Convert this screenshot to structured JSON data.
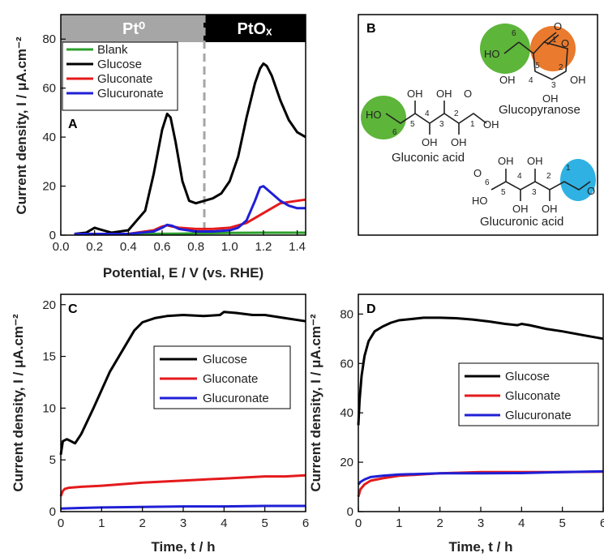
{
  "chart_data": [
    {
      "panel": "A",
      "type": "line",
      "xlabel": "Potential, E / V (vs. RHE)",
      "ylabel": "Current density, I / μA.cm⁻²",
      "xlim": [
        0.0,
        1.45
      ],
      "ylim": [
        0,
        90
      ],
      "xticks": [
        "0.0",
        "0.2",
        "0.4",
        "0.6",
        "0.8",
        "1.0",
        "1.2",
        "1.4"
      ],
      "yticks": [
        "0",
        "20",
        "40",
        "60",
        "80"
      ],
      "region_labels": [
        "Pt⁰",
        "PtOₓ"
      ],
      "region_boundary_x": 0.85,
      "legend_position": "top-left",
      "colors": {
        "Blank": "#2ca02c",
        "Glucose": "#000000",
        "Gluconate": "#e41a1c",
        "Glucuronate": "#1f1fd6"
      },
      "series": [
        {
          "name": "Blank",
          "x": [
            0.08,
            0.3,
            0.5,
            0.7,
            0.85,
            1.0,
            1.2,
            1.45
          ],
          "y": [
            0.5,
            0.5,
            0.5,
            0.6,
            0.8,
            0.9,
            1.0,
            1.0
          ]
        },
        {
          "name": "Glucose",
          "x": [
            0.08,
            0.15,
            0.2,
            0.25,
            0.3,
            0.4,
            0.5,
            0.55,
            0.6,
            0.63,
            0.65,
            0.68,
            0.72,
            0.76,
            0.8,
            0.85,
            0.9,
            0.95,
            1.0,
            1.05,
            1.1,
            1.15,
            1.18,
            1.2,
            1.22,
            1.25,
            1.3,
            1.35,
            1.4,
            1.45
          ],
          "y": [
            0.5,
            1,
            3,
            2,
            1,
            2,
            10,
            25,
            43,
            49.5,
            48,
            38,
            22,
            14,
            13,
            14,
            15,
            17,
            22,
            32,
            48,
            62,
            68,
            70,
            69,
            65,
            55,
            47,
            42,
            40
          ]
        },
        {
          "name": "Gluconate",
          "x": [
            0.08,
            0.4,
            0.55,
            0.6,
            0.63,
            0.66,
            0.7,
            0.8,
            0.9,
            1.0,
            1.1,
            1.2,
            1.3,
            1.4,
            1.45
          ],
          "y": [
            0.5,
            0.5,
            2,
            3.5,
            4,
            3.5,
            3,
            2.5,
            2.5,
            3,
            5,
            9,
            13,
            14,
            14.5
          ]
        },
        {
          "name": "Glucuronate",
          "x": [
            0.08,
            0.4,
            0.55,
            0.6,
            0.63,
            0.66,
            0.7,
            0.8,
            0.9,
            1.0,
            1.05,
            1.1,
            1.15,
            1.18,
            1.2,
            1.25,
            1.3,
            1.35,
            1.4,
            1.45
          ],
          "y": [
            0.5,
            0.5,
            1.5,
            3,
            4.2,
            3.8,
            2.5,
            1.5,
            1.5,
            2,
            3,
            6,
            14,
            19.5,
            20,
            17,
            14,
            12,
            11,
            11
          ]
        }
      ]
    },
    {
      "panel": "C",
      "type": "line",
      "xlabel": "Time, t / h",
      "ylabel": "Current density, I / μA.cm⁻²",
      "xlim": [
        0,
        6
      ],
      "ylim": [
        0,
        21
      ],
      "xticks": [
        "0",
        "1",
        "2",
        "3",
        "4",
        "5",
        "6"
      ],
      "yticks": [
        "0",
        "5",
        "10",
        "15",
        "20"
      ],
      "legend_position": "center-right",
      "series": [
        {
          "name": "Glucose",
          "x": [
            0,
            0.05,
            0.15,
            0.25,
            0.35,
            0.5,
            0.8,
            1.2,
            1.5,
            1.8,
            2.0,
            2.3,
            2.6,
            3.0,
            3.5,
            3.9,
            4.0,
            4.3,
            4.7,
            5.0,
            5.5,
            6.0
          ],
          "y": [
            5.5,
            6.8,
            7.0,
            6.8,
            6.6,
            7.5,
            10,
            13.5,
            15.5,
            17.5,
            18.3,
            18.7,
            18.9,
            19.0,
            18.9,
            19.0,
            19.3,
            19.2,
            19.0,
            19.0,
            18.7,
            18.4
          ]
        },
        {
          "name": "Gluconate",
          "x": [
            0,
            0.05,
            0.1,
            0.2,
            0.5,
            1,
            2,
            3,
            4,
            5,
            5.5,
            6
          ],
          "y": [
            1.5,
            2.0,
            2.2,
            2.3,
            2.4,
            2.5,
            2.8,
            3.0,
            3.2,
            3.4,
            3.4,
            3.5
          ]
        },
        {
          "name": "Glucuronate",
          "x": [
            0,
            0.5,
            1,
            2,
            3,
            4,
            5,
            6
          ],
          "y": [
            0.3,
            0.35,
            0.4,
            0.45,
            0.5,
            0.5,
            0.55,
            0.55
          ]
        }
      ]
    },
    {
      "panel": "D",
      "type": "line",
      "xlabel": "Time, t / h",
      "ylabel": "Current density, I / μA.cm⁻²",
      "xlim": [
        0,
        6
      ],
      "ylim": [
        0,
        88
      ],
      "xticks": [
        "0",
        "1",
        "2",
        "3",
        "4",
        "5",
        "6"
      ],
      "yticks": [
        "0",
        "20",
        "40",
        "60",
        "80"
      ],
      "legend_position": "center-right",
      "series": [
        {
          "name": "Glucose",
          "x": [
            0,
            0.03,
            0.08,
            0.15,
            0.25,
            0.4,
            0.6,
            0.8,
            1.0,
            1.3,
            1.6,
            2.0,
            2.4,
            2.8,
            3.2,
            3.6,
            3.9,
            4.0,
            4.2,
            4.6,
            5.0,
            5.5,
            6.0
          ],
          "y": [
            35,
            45,
            55,
            63,
            69,
            73,
            75,
            76.5,
            77.5,
            78,
            78.5,
            78.5,
            78.3,
            77.8,
            77,
            76,
            75.5,
            76,
            75.5,
            74,
            73,
            71.5,
            70
          ]
        },
        {
          "name": "Gluconate",
          "x": [
            0,
            0.05,
            0.15,
            0.3,
            0.6,
            1,
            2,
            3,
            4,
            5,
            6
          ],
          "y": [
            6,
            9,
            11,
            12.5,
            13.5,
            14.5,
            15.5,
            16,
            16,
            16,
            16.2
          ]
        },
        {
          "name": "Glucuronate",
          "x": [
            0,
            0.05,
            0.15,
            0.3,
            0.6,
            1,
            2,
            3,
            4,
            5,
            6
          ],
          "y": [
            11,
            12,
            13,
            14,
            14.5,
            15,
            15.5,
            15.5,
            15.6,
            16,
            16.3
          ]
        }
      ]
    }
  ],
  "panel_b": {
    "letter": "B",
    "labels": {
      "glucopyranose": "Glucopyranose",
      "gluconic": "Gluconic acid",
      "glucuronic": "Glucuronic acid"
    },
    "highlight_colors": {
      "green": "#5db53a",
      "orange": "#ea7a2e",
      "blue": "#2fb2e3"
    }
  }
}
